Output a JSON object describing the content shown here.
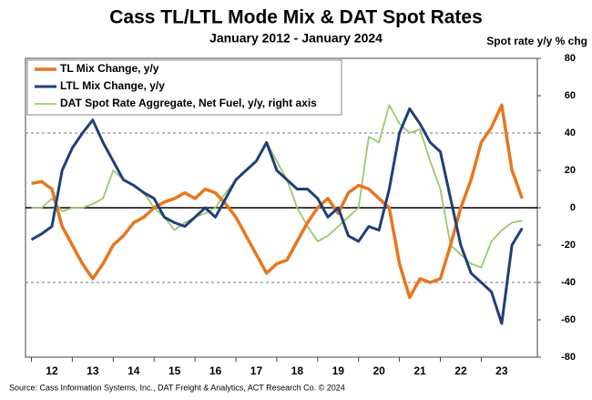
{
  "chart_data": {
    "type": "line",
    "title": "Cass TL/LTL Mode Mix & DAT Spot Rates",
    "subtitle": "January 2012 - January 2024",
    "y_axis_label": "Spot rate y/y % chg",
    "source": "Source: Cass Information Systems, Inc., DAT Freight & Analytics, ACT Research Co. © 2024",
    "x": [
      12,
      12.25,
      12.5,
      12.75,
      13,
      13.25,
      13.5,
      13.75,
      14,
      14.25,
      14.5,
      14.75,
      15,
      15.25,
      15.5,
      15.75,
      16,
      16.25,
      16.5,
      16.75,
      17,
      17.25,
      17.5,
      17.75,
      18,
      18.25,
      18.5,
      18.75,
      19,
      19.25,
      19.5,
      19.75,
      20,
      20.25,
      20.5,
      20.75,
      21,
      21.25,
      21.5,
      21.75,
      22,
      22.25,
      22.5,
      22.75,
      23,
      23.25,
      23.5,
      23.75,
      24
    ],
    "xlim": [
      12,
      24.35
    ],
    "xticks": [
      {
        "value": 12.5,
        "label": "12"
      },
      {
        "value": 13.5,
        "label": "13"
      },
      {
        "value": 14.5,
        "label": "14"
      },
      {
        "value": 15.5,
        "label": "15"
      },
      {
        "value": 16.5,
        "label": "16"
      },
      {
        "value": 17.5,
        "label": "17"
      },
      {
        "value": 18.5,
        "label": "18"
      },
      {
        "value": 19.5,
        "label": "19"
      },
      {
        "value": 20.5,
        "label": "20"
      },
      {
        "value": 21.5,
        "label": "21"
      },
      {
        "value": 22.5,
        "label": "22"
      },
      {
        "value": 23.5,
        "label": "23"
      }
    ],
    "ylim": [
      -80,
      80
    ],
    "yticks": [
      80,
      60,
      40,
      20,
      0,
      -20,
      -40,
      -60,
      -80
    ],
    "dashed_grid": [
      40,
      -40
    ],
    "zero_line": 0,
    "series": [
      {
        "name": "TL Mix Change, y/y",
        "color": "#e8761e",
        "width": 3.5,
        "values": [
          13,
          14,
          10,
          -10,
          -20,
          -30,
          -38,
          -30,
          -20,
          -15,
          -8,
          -5,
          0,
          3,
          5,
          8,
          5,
          10,
          8,
          2,
          -5,
          -15,
          -25,
          -35,
          -30,
          -28,
          -18,
          -8,
          0,
          5,
          -3,
          8,
          12,
          10,
          5,
          0,
          -30,
          -48,
          -38,
          -40,
          -38,
          -20,
          0,
          15,
          35,
          43,
          55,
          20,
          5
        ]
      },
      {
        "name": "LTL Mix Change, y/y",
        "color": "#1f3f7a",
        "width": 3,
        "values": [
          -17,
          -14,
          -10,
          20,
          32,
          40,
          47,
          35,
          25,
          15,
          12,
          8,
          5,
          -5,
          -8,
          -10,
          -5,
          0,
          -5,
          5,
          15,
          20,
          25,
          35,
          20,
          15,
          10,
          10,
          5,
          -5,
          0,
          -15,
          -18,
          -10,
          -12,
          10,
          40,
          53,
          45,
          35,
          30,
          5,
          -20,
          -35,
          -40,
          -45,
          -62,
          -20,
          -11
        ]
      },
      {
        "name": "DAT Spot Rate Aggregate, Net Fuel, y/y, right axis",
        "color": "#9bc86a",
        "width": 1.8,
        "values": [
          0,
          0,
          5,
          -2,
          0,
          0,
          2,
          5,
          20,
          15,
          12,
          8,
          0,
          -5,
          -12,
          -8,
          -5,
          -3,
          0,
          8,
          15,
          20,
          25,
          35,
          25,
          15,
          0,
          -10,
          -18,
          -15,
          -10,
          -5,
          0,
          38,
          35,
          55,
          45,
          40,
          42,
          25,
          10,
          -20,
          -25,
          -30,
          -32,
          -18,
          -12,
          -8,
          -7
        ]
      }
    ]
  }
}
